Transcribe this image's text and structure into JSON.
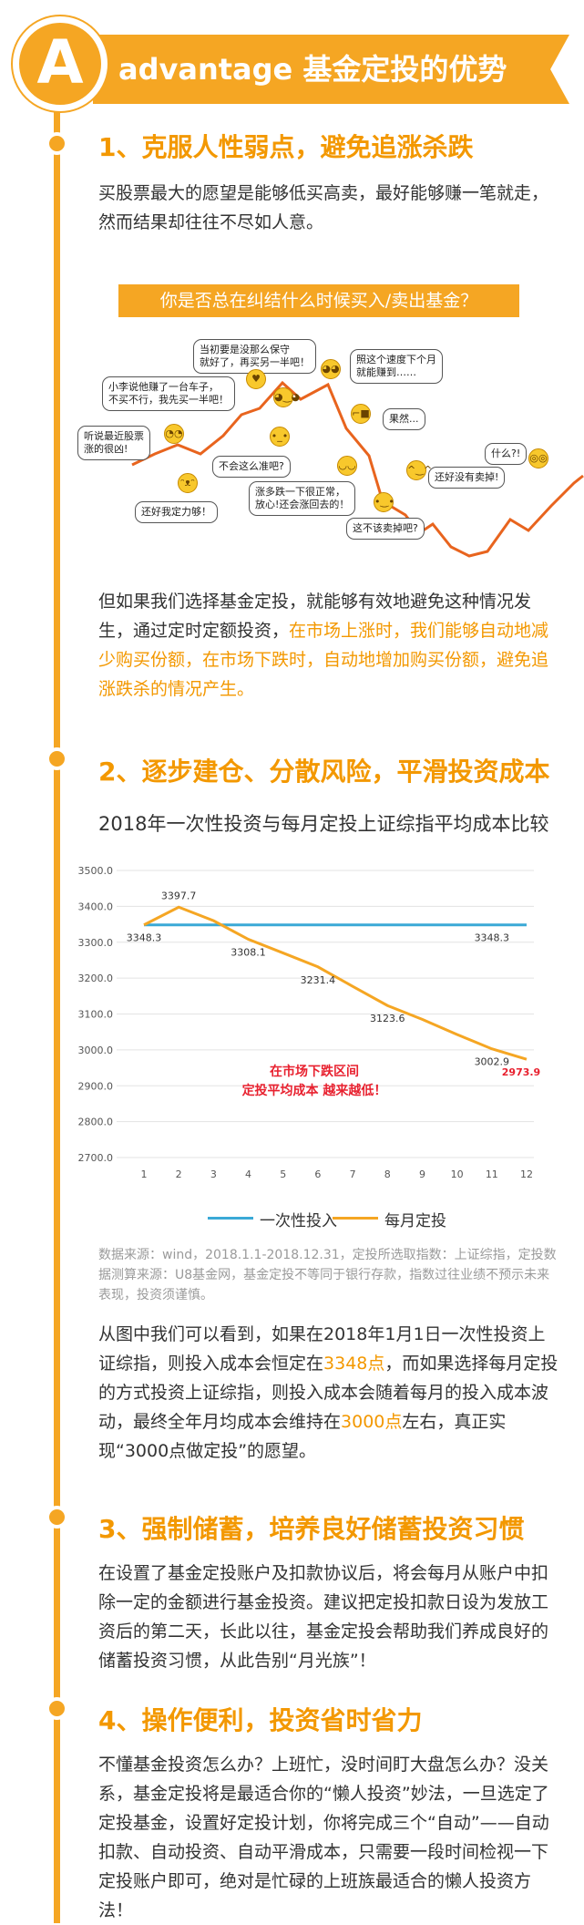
{
  "header": {
    "badge": "A",
    "title": "advantage 基金定投的优势"
  },
  "section1": {
    "heading": "1、克服人性弱点，避免追涨杀跌",
    "para": "买股票最大的愿望是能够低买高卖，最好能够赚一笔就走，然而结果却往往不尽如人意。",
    "callout": "你是否总在纠结什么时候买入/卖出基金？",
    "bubbles": [
      "当初要是没那么保守\n就好了，再买另一半吧！",
      "照这个速度下个月\n就能赚到……",
      "小李说他赚了一台车子，\n不买不行，我先买一半吧！",
      "果然...",
      "听说最近股票\n涨的很凶!",
      "不会这么准吧?",
      "什么?!",
      "还好我定力够！",
      "涨多跌一下很正常，\n放心!还会涨回去的！",
      "还好没有卖掉!",
      "这不该卖掉吧?"
    ],
    "para2_a": "但如果我们选择基金定投，就能够有效地避免这种情况发生，通过定时定额投资，",
    "para2_b": "在市场上涨时，我们能够自动地减少购买份额，在市场下跌时，自动地增加购买份额，避免追涨跌杀的情况产生。"
  },
  "section2": {
    "heading": "2、逐步建仓、分散风险，平滑投资成本",
    "chart_title": "2018年一次性投资与每月定投上证综指平均成本比较",
    "annotation_line1": "在市场下跌区间",
    "annotation_line2": "定投平均成本 越来越低！",
    "source": "数据来源：wind，2018.1.1-2018.12.31，定投所选取指数：上证综指，定投数据测算来源：U8基金网，基金定投不等同于银行存款，指数过往业绩不预示未来表现，投资须谨慎。",
    "para_a": "从图中我们可以看到，如果在2018年1月1日一次性投资上证综指，则投入成本会恒定在",
    "para_hl1": "3348点",
    "para_b": "，而如果选择每月定投的方式投资上证综指，则投入成本会随着每月的投入成本波动，最终全年月均成本会维持在",
    "para_hl2": "3000点",
    "para_c": "左右，真正实现“3000点做定投”的愿望。"
  },
  "section3": {
    "heading": "3、强制储蓄，培养良好储蓄投资习惯",
    "para": "在设置了基金定投账户及扣款协议后，将会每月从账户中扣除一定的金额进行基金投资。建议把定投扣款日设为发放工资后的第二天，长此以往，基金定投会帮助我们养成良好的储蓄投资习惯，从此告别“月光族”！"
  },
  "section4": {
    "heading": "4、操作便利，投资省时省力",
    "para": "不懂基金投资怎么办？上班忙，没时间盯大盘怎么办？没关系，基金定投将是最适合你的“懒人投资”妙法，一旦选定了定投基金，设置好定投计划，你将完成三个“自动”——自动扣款、自动投资、自动平滑成本，只需要一段时间检视一下定投账户即可，绝对是忙碌的上班族最适合的懒人投资方法！"
  },
  "colors": {
    "accent": "#f5a623",
    "lump": "#3aa9d6",
    "monthly": "#f5a623",
    "highlight": "#e8212f"
  },
  "chart_data": {
    "type": "line",
    "title": "2018年一次性投资与每月定投上证综指平均成本比较",
    "x": [
      1,
      2,
      3,
      4,
      5,
      6,
      7,
      8,
      9,
      10,
      11,
      12
    ],
    "ylim": [
      2700,
      3500
    ],
    "yticks": [
      "2700.0",
      "2800.0",
      "2900.0",
      "3000.0",
      "3100.0",
      "3200.0",
      "3300.0",
      "3400.0",
      "3500.0"
    ],
    "series": [
      {
        "name": "一次性投入",
        "values": [
          3348.3,
          3348.3,
          3348.3,
          3348.3,
          3348.3,
          3348.3,
          3348.3,
          3348.3,
          3348.3,
          3348.3,
          3348.3,
          3348.3
        ]
      },
      {
        "name": "每月定投",
        "values": [
          3348.3,
          3397.7,
          3360,
          3308.1,
          3270,
          3231.4,
          3177,
          3123.6,
          3085,
          3043,
          3002.9,
          2973.9
        ]
      }
    ],
    "data_labels": [
      {
        "x": 1,
        "y": 3348.3,
        "text": "3348.3"
      },
      {
        "x": 2,
        "y": 3397.7,
        "text": "3397.7"
      },
      {
        "x": 4,
        "y": 3308.1,
        "text": "3308.1"
      },
      {
        "x": 6,
        "y": 3231.4,
        "text": "3231.4"
      },
      {
        "x": 8,
        "y": 3123.6,
        "text": "3123.6"
      },
      {
        "x": 11,
        "y": 3348.3,
        "text": "3348.3"
      },
      {
        "x": 11,
        "y": 3002.9,
        "text": "3002.9"
      },
      {
        "x": 12,
        "y": 2973.9,
        "text": "2973.9"
      }
    ],
    "grid": true,
    "legend_position": "bottom"
  }
}
